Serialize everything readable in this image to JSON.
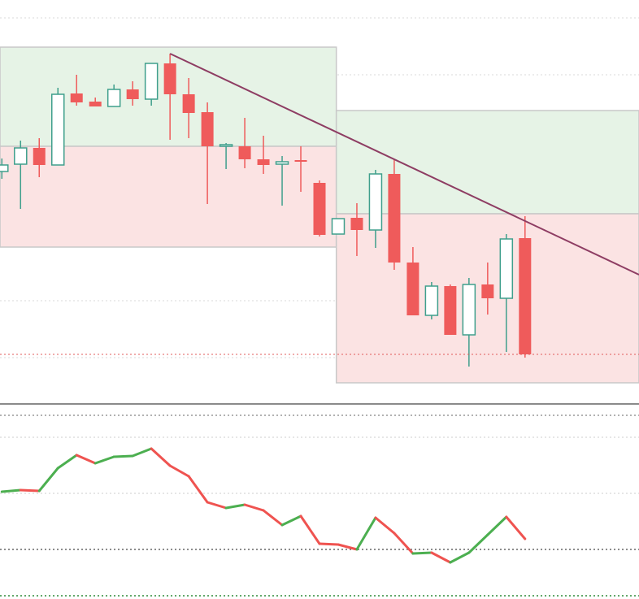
{
  "chart_data": [
    {
      "type": "candlestick",
      "xlim": [
        -0.1,
        34.1
      ],
      "ylim": [
        0,
        500
      ],
      "grid_lines": [
        478,
        408,
        338,
        270,
        200,
        130,
        60
      ],
      "grid_color": "#d9d9d9",
      "up_color": "#3f9f8c",
      "down_color": "#ef5b5b",
      "open": [
        289,
        298,
        318,
        297,
        385,
        375,
        369,
        390,
        378,
        422,
        384,
        362,
        320,
        320,
        304,
        298,
        303,
        275,
        212,
        232,
        217,
        286,
        177,
        112,
        148,
        88,
        150,
        133,
        207
      ],
      "high": [
        305,
        327,
        330,
        392,
        408,
        380,
        396,
        400,
        422,
        434,
        404,
        374,
        324,
        355,
        333,
        308,
        320,
        278,
        231,
        250,
        291,
        304,
        196,
        153,
        150,
        158,
        177,
        212,
        234
      ],
      "low": [
        280,
        243,
        282,
        297,
        370,
        369,
        369,
        370,
        370,
        328,
        330,
        249,
        292,
        293,
        286,
        247,
        264,
        209,
        212,
        185,
        195,
        168,
        112,
        107,
        88,
        49,
        113,
        67,
        60
      ],
      "close": [
        297,
        318,
        297,
        384,
        374,
        369,
        390,
        378,
        422,
        384,
        361,
        320,
        322,
        304,
        297,
        301,
        301,
        211,
        231,
        217,
        286,
        177,
        112,
        148,
        88,
        150,
        133,
        206,
        64
      ],
      "price_line_color": "#e05a5a",
      "boxes": [
        {
          "x": [
            -0.1,
            17.9
          ],
          "y": [
            320,
            442
          ],
          "color": "#e6f3e6"
        },
        {
          "x": [
            -0.1,
            17.9
          ],
          "y": [
            196,
            320
          ],
          "color": "#fbe3e3"
        },
        {
          "x": [
            17.9,
            34.1
          ],
          "y": [
            237,
            364
          ],
          "color": "#e6f3e6"
        },
        {
          "x": [
            17.9,
            34.1
          ],
          "y": [
            29,
            237
          ],
          "color": "#fbe3e3"
        }
      ],
      "trendline": {
        "x": [
          9,
          34.1
        ],
        "y": [
          434,
          162
        ],
        "color": "#8e3d63"
      }
    },
    {
      "type": "oscillator",
      "xlim": [
        -0.1,
        34.1
      ],
      "ylim": [
        0,
        240
      ],
      "up_color": "#4caf50",
      "down_color": "#ef5350",
      "values": [
        132,
        134,
        133,
        161,
        177,
        167,
        175,
        176,
        185,
        164,
        151,
        119,
        112,
        116,
        109,
        91,
        102,
        68,
        67,
        61,
        100,
        81,
        56,
        57,
        45,
        57,
        79,
        101,
        74
      ],
      "levels": [
        {
          "value": 226,
          "color": "#999999"
        },
        {
          "value": 199,
          "color": "#dddddd"
        },
        {
          "value": 130,
          "color": "#dddddd"
        },
        {
          "value": 61,
          "color": "#666666"
        },
        {
          "value": 4,
          "color": "#2e8b3a"
        }
      ]
    }
  ]
}
